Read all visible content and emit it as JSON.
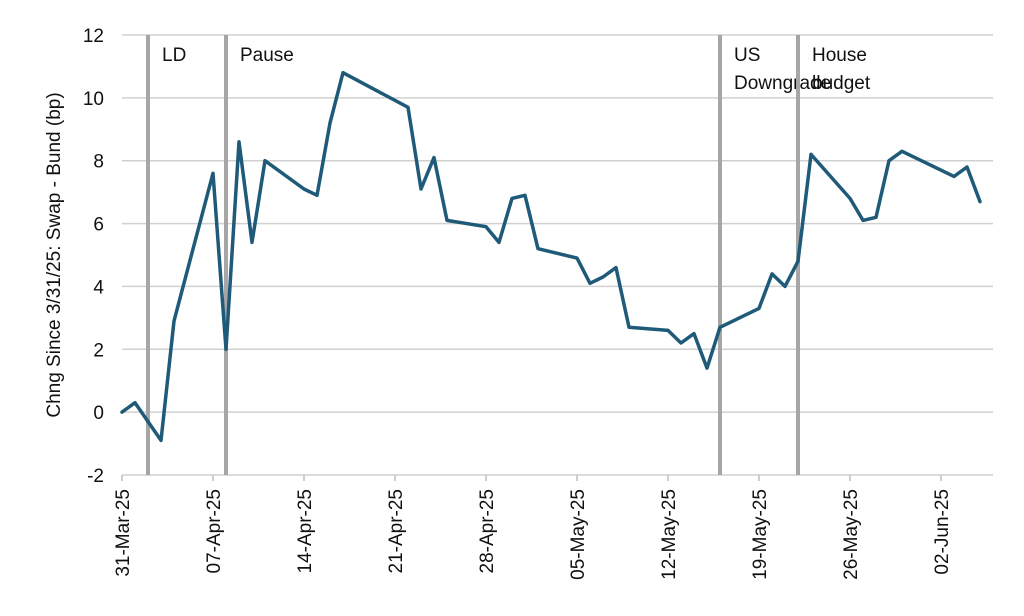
{
  "chart_data": {
    "type": "line",
    "title": "",
    "xlabel": "",
    "ylabel": "Chng Since 3/31/25: Swap - Bund (bp)",
    "ylim": [
      -2,
      12
    ],
    "yticks": [
      "-2",
      "0",
      "2",
      "4",
      "6",
      "8",
      "10",
      "12"
    ],
    "xlim": [
      "2025-03-31",
      "2025-06-06"
    ],
    "xticks": [
      {
        "date": "2025-03-31",
        "label": "31-Mar-25"
      },
      {
        "date": "2025-04-07",
        "label": "07-Apr-25"
      },
      {
        "date": "2025-04-14",
        "label": "14-Apr-25"
      },
      {
        "date": "2025-04-21",
        "label": "21-Apr-25"
      },
      {
        "date": "2025-04-28",
        "label": "28-Apr-25"
      },
      {
        "date": "2025-05-05",
        "label": "05-May-25"
      },
      {
        "date": "2025-05-12",
        "label": "12-May-25"
      },
      {
        "date": "2025-05-19",
        "label": "19-May-25"
      },
      {
        "date": "2025-05-26",
        "label": "26-May-25"
      },
      {
        "date": "2025-06-02",
        "label": "02-Jun-25"
      }
    ],
    "grid": true,
    "line_color": "#1f5a78",
    "event_color": "#a6a6a6",
    "grid_color": "#d0d0d0",
    "events": [
      {
        "date": "2025-04-02",
        "label": [
          "LD"
        ]
      },
      {
        "date": "2025-04-08",
        "label": [
          "Pause"
        ]
      },
      {
        "date": "2025-05-16",
        "label": [
          "US",
          "Downgrade"
        ]
      },
      {
        "date": "2025-05-22",
        "label": [
          "House",
          "budget"
        ]
      }
    ],
    "series": [
      {
        "name": "",
        "x": [
          "2025-03-31",
          "2025-04-01",
          "2025-04-03",
          "2025-04-04",
          "2025-04-07",
          "2025-04-08",
          "2025-04-09",
          "2025-04-10",
          "2025-04-11",
          "2025-04-14",
          "2025-04-15",
          "2025-04-16",
          "2025-04-17",
          "2025-04-22",
          "2025-04-23",
          "2025-04-24",
          "2025-04-25",
          "2025-04-28",
          "2025-04-29",
          "2025-04-30",
          "2025-05-01",
          "2025-05-02",
          "2025-05-05",
          "2025-05-06",
          "2025-05-07",
          "2025-05-08",
          "2025-05-09",
          "2025-05-12",
          "2025-05-13",
          "2025-05-14",
          "2025-05-15",
          "2025-05-16",
          "2025-05-19",
          "2025-05-20",
          "2025-05-21",
          "2025-05-22",
          "2025-05-23",
          "2025-05-26",
          "2025-05-27",
          "2025-05-28",
          "2025-05-29",
          "2025-05-30",
          "2025-06-03",
          "2025-06-04",
          "2025-06-05"
        ],
        "values": [
          0.0,
          0.3,
          -0.9,
          2.9,
          7.6,
          2.0,
          8.6,
          5.4,
          8.0,
          7.1,
          6.9,
          9.2,
          10.8,
          9.7,
          7.1,
          8.1,
          6.1,
          5.9,
          5.4,
          6.8,
          6.9,
          5.2,
          4.9,
          4.1,
          4.3,
          4.6,
          2.7,
          2.6,
          2.2,
          2.5,
          1.4,
          2.7,
          3.3,
          4.4,
          4.0,
          4.8,
          8.2,
          6.8,
          6.1,
          6.2,
          8.0,
          8.3,
          7.5,
          7.8,
          6.7
        ]
      }
    ]
  }
}
